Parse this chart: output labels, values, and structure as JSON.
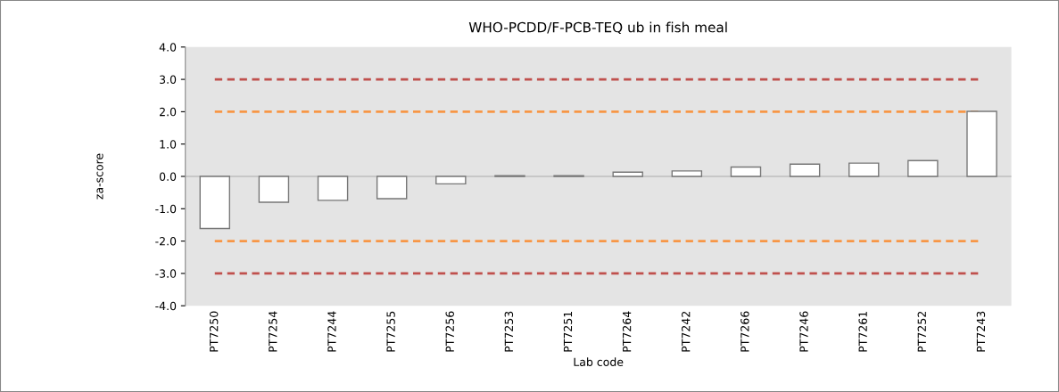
{
  "chart_data": {
    "type": "bar",
    "title": "WHO-PCDD/F-PCB-TEQ ub in fish meal",
    "xlabel": "Lab code",
    "ylabel": "za-score",
    "categories": [
      "PT7250",
      "PT7254",
      "PT7244",
      "PT7255",
      "PT7256",
      "PT7253",
      "PT7251",
      "PT7264",
      "PT7242",
      "PT7266",
      "PT7246",
      "PT7261",
      "PT7252",
      "PT7243"
    ],
    "values": [
      -1.61,
      -0.8,
      -0.74,
      -0.69,
      -0.23,
      0.02,
      0.02,
      0.13,
      0.17,
      0.29,
      0.38,
      0.41,
      0.49,
      2.01
    ],
    "color": "#ffffff",
    "ylim": [
      -4,
      4
    ],
    "yticks": [
      {
        "value": -4,
        "label": "-4.0"
      },
      {
        "value": -3,
        "label": "-3.0"
      },
      {
        "value": -2,
        "label": "-2.0"
      },
      {
        "value": -1,
        "label": "-1.0"
      },
      {
        "value": 0,
        "label": "0.0"
      },
      {
        "value": 1,
        "label": "1.0"
      },
      {
        "value": 2,
        "label": "2.0"
      },
      {
        "value": 3,
        "label": "3.0"
      },
      {
        "value": 4,
        "label": "4.0"
      }
    ],
    "ref_lines": [
      {
        "axis": "y",
        "value": 3,
        "color": "#c0504d",
        "line_style": "dashed"
      },
      {
        "axis": "y",
        "value": 2,
        "color": "#f79646",
        "line_style": "dashed"
      },
      {
        "axis": "y",
        "value": -2,
        "color": "#f79646",
        "line_style": "dashed"
      },
      {
        "axis": "y",
        "value": -3,
        "color": "#c0504d",
        "line_style": "dashed"
      }
    ],
    "grid": false,
    "legend": false
  }
}
